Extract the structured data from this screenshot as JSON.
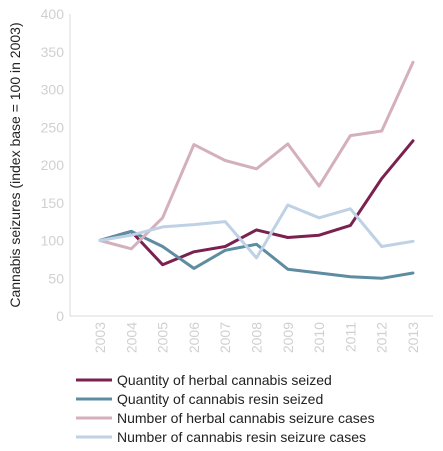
{
  "chart_data": {
    "type": "line",
    "title": "",
    "xlabel": "",
    "ylabel": "Cannabis seizures (index base = 100 in 2003)",
    "ylim": [
      0,
      400
    ],
    "yticks": [
      0,
      50,
      100,
      150,
      200,
      250,
      300,
      350,
      400
    ],
    "categories": [
      "2003",
      "2004",
      "2005",
      "2006",
      "2007",
      "2008",
      "2009",
      "2010",
      "2011",
      "2012",
      "2013"
    ],
    "grid": false,
    "legend_placement": "bottom",
    "series": [
      {
        "name": "Quantity of herbal cannabis seized",
        "color": "#7b2150",
        "values": [
          100,
          112,
          68,
          85,
          92,
          114,
          104,
          107,
          120,
          182,
          232
        ]
      },
      {
        "name": "Quantity of cannabis resin seized",
        "color": "#5e8ca1",
        "values": [
          100,
          112,
          92,
          63,
          87,
          95,
          62,
          57,
          52,
          50,
          57
        ]
      },
      {
        "name": "Number of herbal cannabis seizure cases",
        "color": "#d4b0bc",
        "values": [
          100,
          89,
          130,
          227,
          206,
          195,
          228,
          172,
          239,
          245,
          336
        ]
      },
      {
        "name": "Number of cannabis resin seizure cases",
        "color": "#bfd1e4",
        "values": [
          100,
          107,
          118,
          121,
          125,
          77,
          147,
          130,
          142,
          92,
          99
        ]
      }
    ]
  }
}
